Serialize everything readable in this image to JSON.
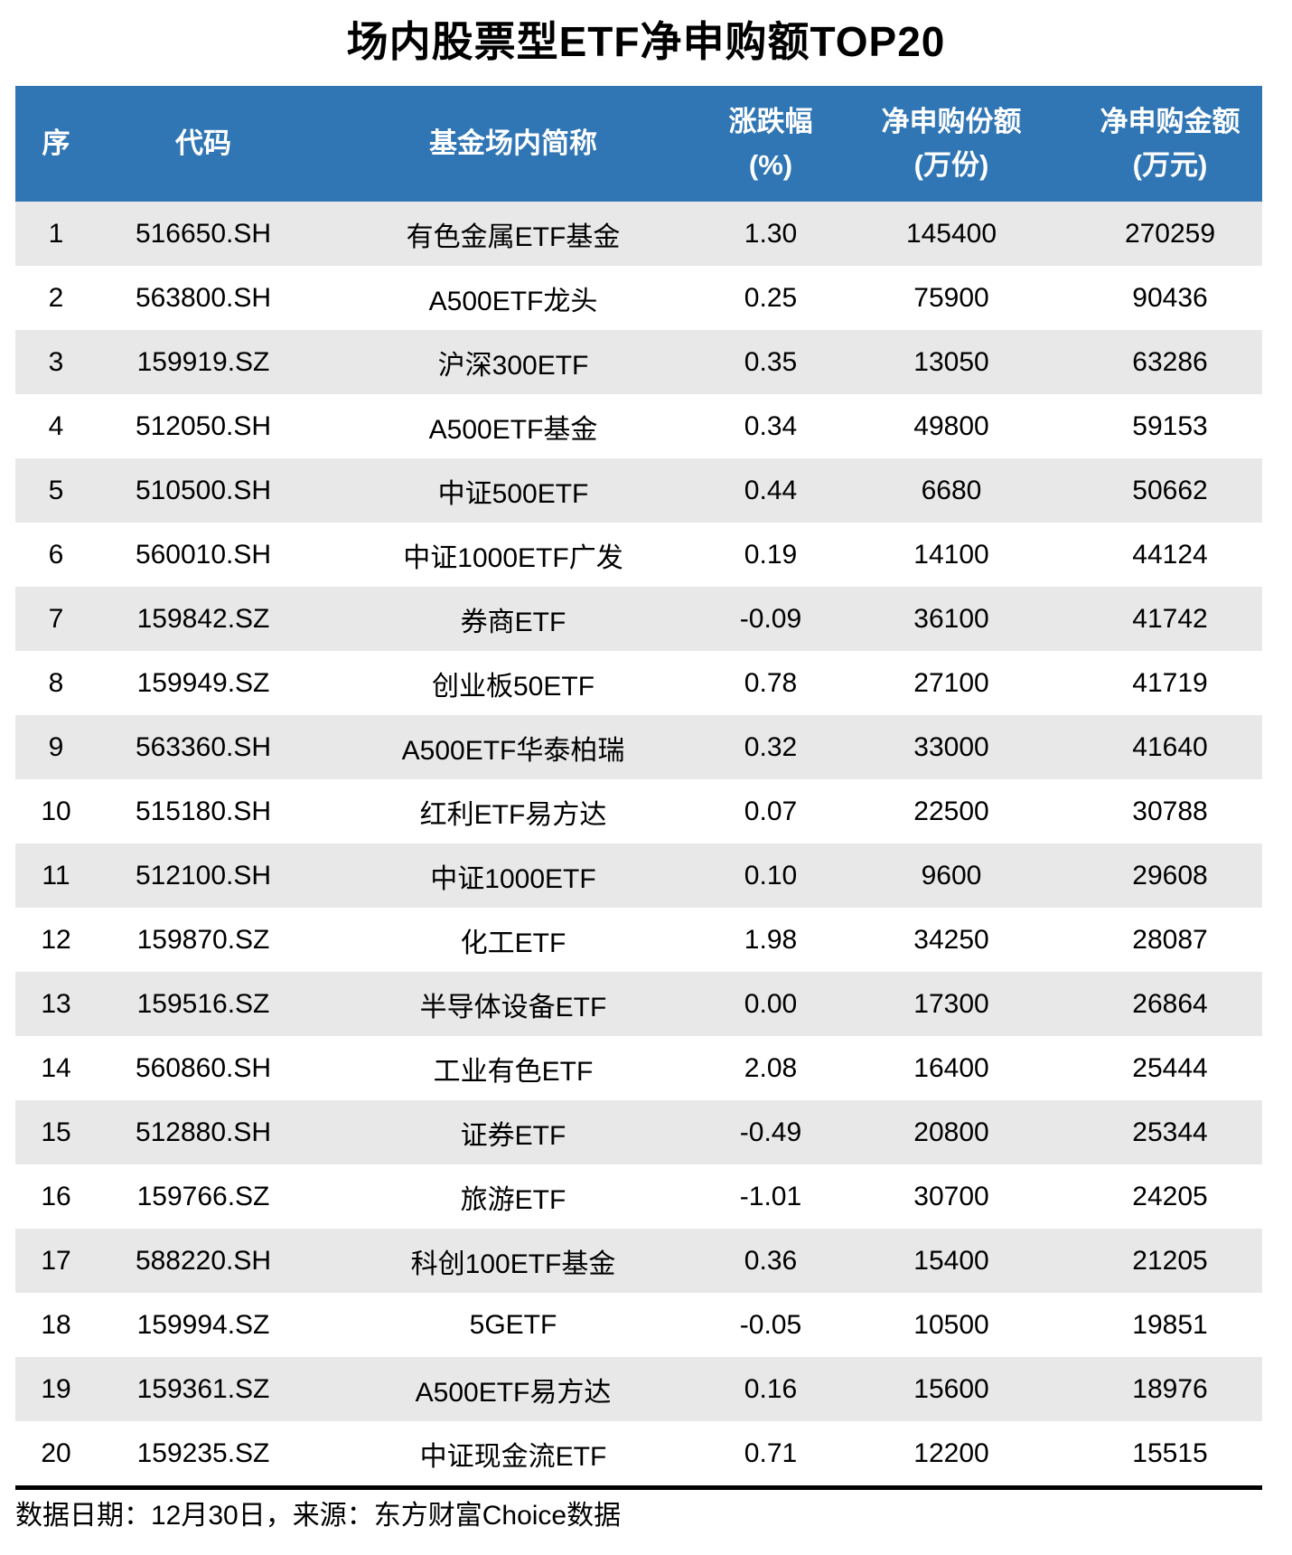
{
  "title": "场内股票型ETF净申购额TOP20",
  "footer": "数据日期：12月30日，来源：东方财富Choice数据",
  "colors": {
    "header_bg": "#3076B5",
    "header_text": "#FFFFFF",
    "row_alt_bg": "#E8E8E8",
    "row_bg": "#FFFFFF",
    "text": "#000000",
    "footer_rule": "#000000"
  },
  "header": {
    "columns": [
      {
        "key": "rank",
        "main": "序",
        "sub": ""
      },
      {
        "key": "code",
        "main": "代码",
        "sub": ""
      },
      {
        "key": "name",
        "main": "基金场内简称",
        "sub": ""
      },
      {
        "key": "change",
        "main": "涨跌幅",
        "sub": "(%)"
      },
      {
        "key": "shares",
        "main": "净申购份额",
        "sub": "(万份)"
      },
      {
        "key": "amount",
        "main": "净申购金额",
        "sub": "(万元)"
      }
    ]
  },
  "chart_data": {
    "type": "table",
    "title": "场内股票型ETF净申购额TOP20",
    "columns": [
      "序",
      "代码",
      "基金场内简称",
      "涨跌幅(%)",
      "净申购份额(万份)",
      "净申购金额(万元)"
    ],
    "rows": [
      [
        "1",
        "516650.SH",
        "有色金属ETF基金",
        "1.30",
        "145400",
        "270259"
      ],
      [
        "2",
        "563800.SH",
        "A500ETF龙头",
        "0.25",
        "75900",
        "90436"
      ],
      [
        "3",
        "159919.SZ",
        "沪深300ETF",
        "0.35",
        "13050",
        "63286"
      ],
      [
        "4",
        "512050.SH",
        "A500ETF基金",
        "0.34",
        "49800",
        "59153"
      ],
      [
        "5",
        "510500.SH",
        "中证500ETF",
        "0.44",
        "6680",
        "50662"
      ],
      [
        "6",
        "560010.SH",
        "中证1000ETF广发",
        "0.19",
        "14100",
        "44124"
      ],
      [
        "7",
        "159842.SZ",
        "券商ETF",
        "-0.09",
        "36100",
        "41742"
      ],
      [
        "8",
        "159949.SZ",
        "创业板50ETF",
        "0.78",
        "27100",
        "41719"
      ],
      [
        "9",
        "563360.SH",
        "A500ETF华泰柏瑞",
        "0.32",
        "33000",
        "41640"
      ],
      [
        "10",
        "515180.SH",
        "红利ETF易方达",
        "0.07",
        "22500",
        "30788"
      ],
      [
        "11",
        "512100.SH",
        "中证1000ETF",
        "0.10",
        "9600",
        "29608"
      ],
      [
        "12",
        "159870.SZ",
        "化工ETF",
        "1.98",
        "34250",
        "28087"
      ],
      [
        "13",
        "159516.SZ",
        "半导体设备ETF",
        "0.00",
        "17300",
        "26864"
      ],
      [
        "14",
        "560860.SH",
        "工业有色ETF",
        "2.08",
        "16400",
        "25444"
      ],
      [
        "15",
        "512880.SH",
        "证券ETF",
        "-0.49",
        "20800",
        "25344"
      ],
      [
        "16",
        "159766.SZ",
        "旅游ETF",
        "-1.01",
        "30700",
        "24205"
      ],
      [
        "17",
        "588220.SH",
        "科创100ETF基金",
        "0.36",
        "15400",
        "21205"
      ],
      [
        "18",
        "159994.SZ",
        "5GETF",
        "-0.05",
        "10500",
        "19851"
      ],
      [
        "19",
        "159361.SZ",
        "A500ETF易方达",
        "0.16",
        "15600",
        "18976"
      ],
      [
        "20",
        "159235.SZ",
        "中证现金流ETF",
        "0.71",
        "12200",
        "15515"
      ]
    ]
  }
}
